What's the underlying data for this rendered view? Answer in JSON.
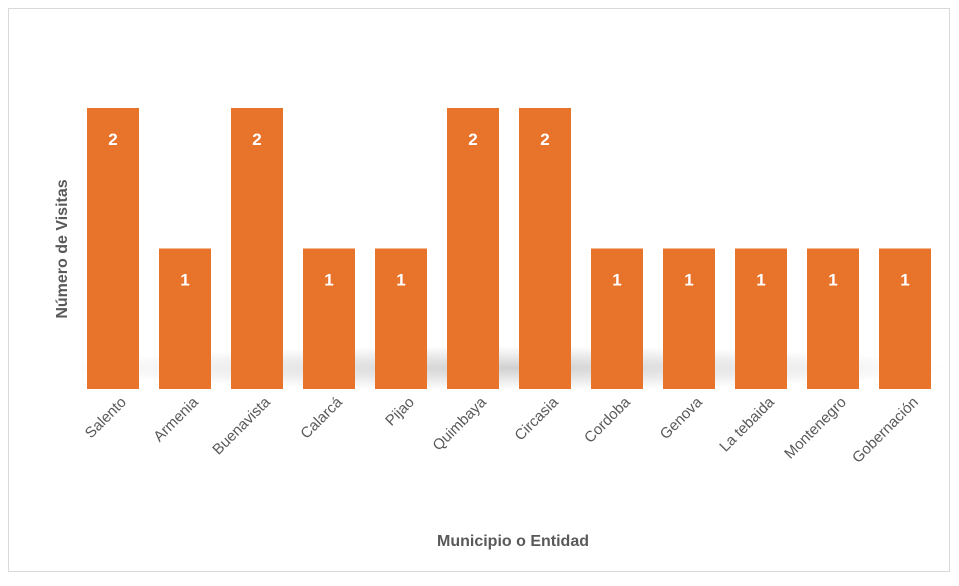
{
  "chart_data": {
    "type": "bar",
    "x_label": "Municipio o Entidad",
    "y_label": "Número de Visitas",
    "categories": [
      "Salento",
      "Armenia",
      "Buenavista",
      "Calarcá",
      "Pijao",
      "Quimbaya",
      "Circasia",
      "Cordoba",
      "Genova",
      "La tebaida",
      "Montenegro",
      "Gobernación"
    ],
    "values": [
      2,
      1,
      2,
      1,
      1,
      2,
      2,
      1,
      1,
      1,
      1,
      1
    ],
    "color": "#e8732a",
    "ylim": [
      0,
      2
    ],
    "data_labels": true
  }
}
